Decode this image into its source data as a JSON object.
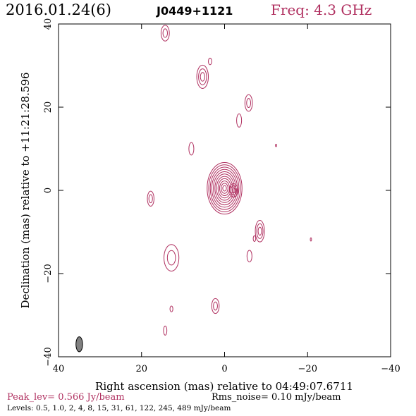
{
  "header": {
    "date": "2016.01.24(6)",
    "source": "J0449+1121",
    "frequency": "Freq: 4.3 GHz"
  },
  "footer": {
    "peak": "Peak_lev=  0.566 Jy/beam",
    "rms": "Rms_noise= 0.10 mJy/beam",
    "levels": "Levels: 0.5, 1.0,   2,   4,   8,  15,  31,  61, 122, 245, 489 mJy/beam"
  },
  "colors": {
    "contour": "#b03060",
    "text_accent": "#b03060",
    "beam": "#808080"
  },
  "chart_data": {
    "type": "contour",
    "xlabel": "Right ascension (mas) relative to 04:49:07.6711",
    "ylabel": "Declination (mas) relative to +11:21:28.596",
    "xlim": [
      40,
      -40
    ],
    "ylim": [
      -40,
      40
    ],
    "xticks": [
      40,
      20,
      0,
      -20,
      -40
    ],
    "yticks": [
      -40,
      -20,
      0,
      20,
      40
    ],
    "xtick_labels": [
      "40",
      "20",
      "0",
      "−20",
      "−40"
    ],
    "ytick_labels": [
      "−40",
      "−20",
      "0",
      "20",
      "40"
    ],
    "contour_levels_mJy": [
      0.5,
      1.0,
      2,
      4,
      8,
      15,
      31,
      61,
      122,
      245,
      489
    ],
    "peak_Jy_per_beam": 0.566,
    "rms_noise_mJy_per_beam": 0.1,
    "beam": {
      "x": 35,
      "y": -37,
      "major_mas": 3.6,
      "minor_mas": 1.6,
      "pa_deg": 0
    },
    "components": [
      {
        "name": "core",
        "x": 0.0,
        "y": 0.5,
        "rx": 4.2,
        "ry": 6.2,
        "rings": 11
      },
      {
        "name": "core-ext",
        "x": -2.2,
        "y": 0.0,
        "rx": 1.0,
        "ry": 1.6,
        "rings": 3
      },
      {
        "name": "c1",
        "x": 14.3,
        "y": 37.8,
        "rx": 1.0,
        "ry": 1.9,
        "rings": 2
      },
      {
        "name": "c2",
        "x": 5.3,
        "y": 27.3,
        "rx": 1.4,
        "ry": 2.8,
        "rings": 3
      },
      {
        "name": "c3",
        "x": 3.5,
        "y": 31.0,
        "rx": 0.4,
        "ry": 0.8,
        "rings": 1
      },
      {
        "name": "c4",
        "x": -5.8,
        "y": 21.0,
        "rx": 0.9,
        "ry": 2.0,
        "rings": 2
      },
      {
        "name": "c5",
        "x": -3.5,
        "y": 16.8,
        "rx": 0.6,
        "ry": 1.6,
        "rings": 1
      },
      {
        "name": "c6",
        "x": 8.0,
        "y": 10.0,
        "rx": 0.6,
        "ry": 1.5,
        "rings": 1
      },
      {
        "name": "c7",
        "x": -12.4,
        "y": 10.8,
        "rx": 0.15,
        "ry": 0.3,
        "rings": 1
      },
      {
        "name": "c8",
        "x": 17.8,
        "y": -2.0,
        "rx": 0.8,
        "ry": 1.8,
        "rings": 2
      },
      {
        "name": "c9",
        "x": -8.5,
        "y": -9.8,
        "rx": 1.1,
        "ry": 2.6,
        "rings": 3
      },
      {
        "name": "c10",
        "x": -20.8,
        "y": -11.8,
        "rx": 0.15,
        "ry": 0.4,
        "rings": 1
      },
      {
        "name": "c11",
        "x": -7.2,
        "y": -11.6,
        "rx": 0.3,
        "ry": 0.7,
        "rings": 1
      },
      {
        "name": "c12",
        "x": -6.0,
        "y": -15.8,
        "rx": 0.6,
        "ry": 1.4,
        "rings": 1
      },
      {
        "name": "c13",
        "x": 12.8,
        "y": -16.2,
        "rx": 1.8,
        "ry": 3.2,
        "rings": 2
      },
      {
        "name": "c14",
        "x": 2.2,
        "y": -27.8,
        "rx": 0.9,
        "ry": 1.8,
        "rings": 2
      },
      {
        "name": "c15",
        "x": 12.8,
        "y": -28.5,
        "rx": 0.35,
        "ry": 0.7,
        "rings": 1
      },
      {
        "name": "c16",
        "x": 14.3,
        "y": -33.7,
        "rx": 0.4,
        "ry": 1.1,
        "rings": 1
      }
    ]
  }
}
